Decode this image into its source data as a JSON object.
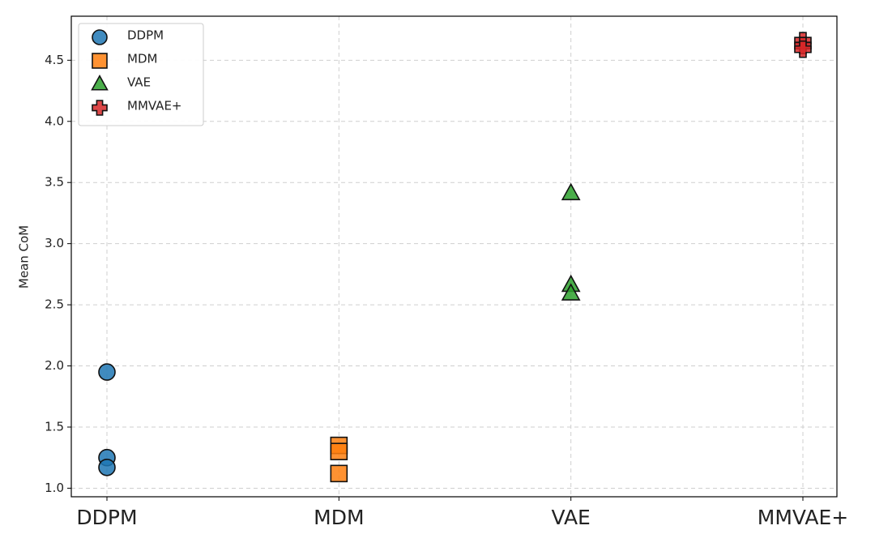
{
  "chart_data": {
    "type": "scatter",
    "y_label": "Mean CoM",
    "categories": [
      "DDPM",
      "MDM",
      "VAE",
      "MMVAE+"
    ],
    "series": [
      {
        "name": "DDPM",
        "color": "#1f77b4",
        "marker": "circle",
        "values": [
          1.95,
          1.25,
          1.17
        ]
      },
      {
        "name": "MDM",
        "color": "#ff7f0e",
        "marker": "square",
        "values": [
          1.35,
          1.3,
          1.12
        ]
      },
      {
        "name": "VAE",
        "color": "#2ca02c",
        "marker": "triangle",
        "values": [
          3.41,
          2.66,
          2.59
        ]
      },
      {
        "name": "MMVAE+",
        "color": "#d62728",
        "marker": "plus",
        "values": [
          4.66,
          4.62,
          4.59
        ]
      }
    ],
    "ylim": [
      0.93,
      4.86
    ],
    "yticks": [
      {
        "value": 1,
        "label": "1.0"
      },
      1.5,
      {
        "value": 2,
        "label": "2.0"
      },
      2.5,
      {
        "value": 3,
        "label": "3.0"
      },
      3.5,
      {
        "value": 4,
        "label": "4.0"
      },
      4.5
    ],
    "grid": true,
    "legend": "upper-left"
  }
}
